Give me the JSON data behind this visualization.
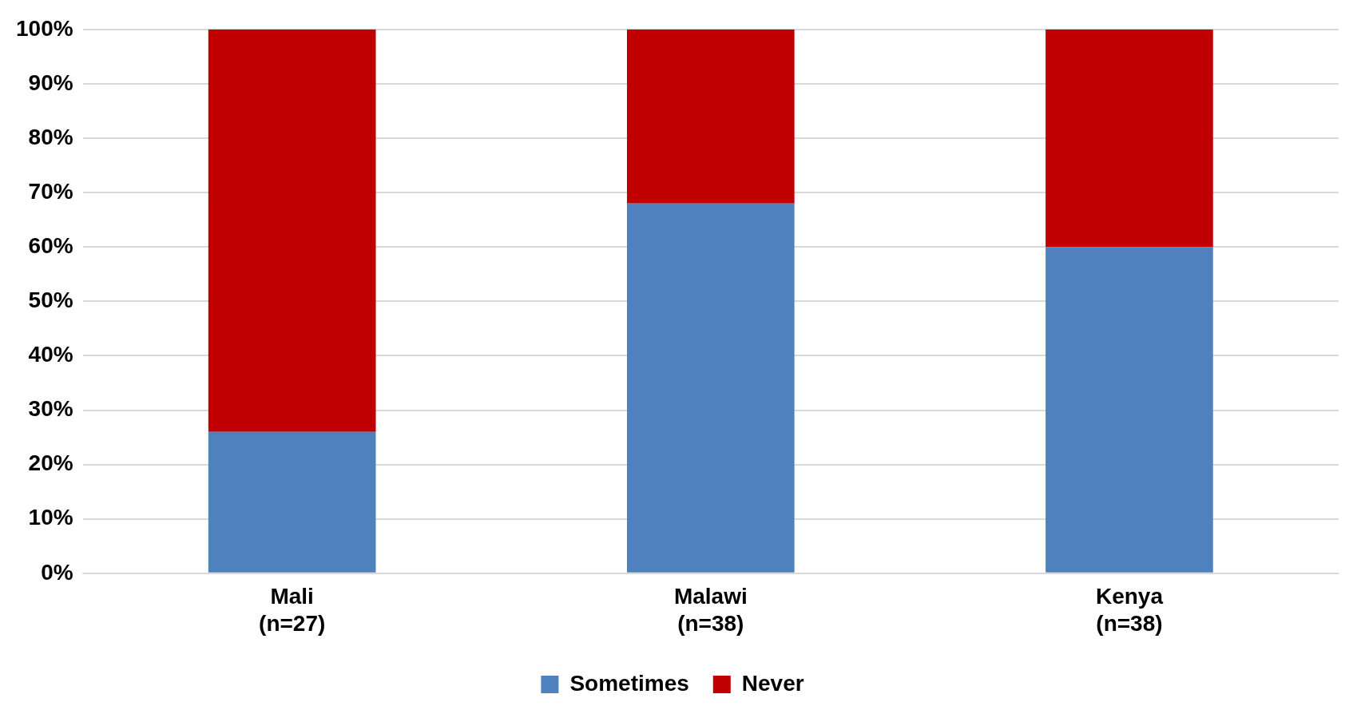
{
  "chart_data": {
    "type": "bar",
    "stacked": true,
    "categories": [
      "Mali\n(n=27)",
      "Malawi\n(n=38)",
      "Kenya\n(n=38)"
    ],
    "series": [
      {
        "name": "Sometimes",
        "color": "#4f81bd",
        "values": [
          26,
          68,
          60
        ]
      },
      {
        "name": "Never",
        "color": "#c00000",
        "values": [
          74,
          32,
          40
        ]
      }
    ],
    "ylim": [
      0,
      100
    ],
    "yticks": [
      {
        "value": 0,
        "label": "0%"
      },
      {
        "value": 10,
        "label": "10%"
      },
      {
        "value": 20,
        "label": "20%"
      },
      {
        "value": 30,
        "label": "30%"
      },
      {
        "value": 40,
        "label": "40%"
      },
      {
        "value": 50,
        "label": "50%"
      },
      {
        "value": 60,
        "label": "60%"
      },
      {
        "value": 70,
        "label": "70%"
      },
      {
        "value": 80,
        "label": "80%"
      },
      {
        "value": 90,
        "label": "90%"
      },
      {
        "value": 100,
        "label": "100%"
      }
    ],
    "grid": "y",
    "legend": "bottom"
  }
}
